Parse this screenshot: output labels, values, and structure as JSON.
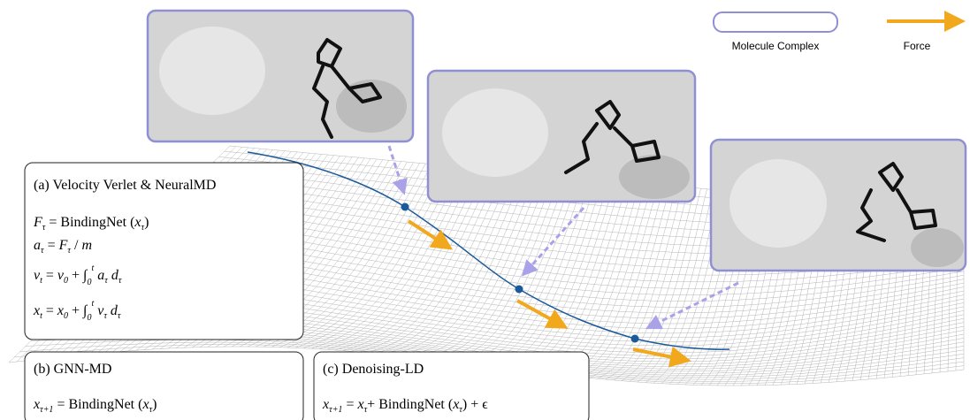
{
  "legend": {
    "complex": "Molecule Complex",
    "force": "Force"
  },
  "panel_a": {
    "title": "(a) Velocity Verlet & NeuralMD",
    "equations": [
      [
        "F",
        "τ",
        " = BindingNet (",
        "x",
        "τ",
        ")"
      ],
      [
        "a",
        "τ",
        " = ",
        "F",
        "τ",
        " / ",
        "m"
      ],
      [
        "v",
        "t",
        " = ",
        "v",
        "0",
        " + ∫",
        "0",
        "t",
        " a",
        "τ",
        " d",
        "τ"
      ],
      [
        "x",
        "t",
        " = ",
        "x",
        "0",
        " + ∫",
        "0",
        "t",
        " v",
        "τ",
        " d",
        "τ"
      ]
    ]
  },
  "panel_b": {
    "title": "(b) GNN-MD",
    "equation": [
      "x",
      "τ+1",
      " = BindingNet (",
      "x",
      "τ",
      ")"
    ]
  },
  "panel_c": {
    "title": "(c) Denoising-LD",
    "equation": [
      "x",
      "τ+1",
      " = ",
      "x",
      "τ",
      "+ BindingNet (",
      "x",
      "τ",
      ") + ϵ"
    ]
  }
}
